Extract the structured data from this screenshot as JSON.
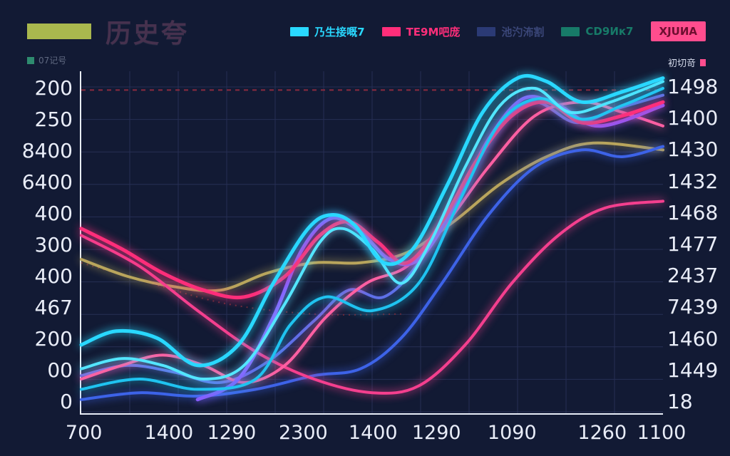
{
  "title": {
    "text": "历史夸",
    "swatch_color": "#a9b84e"
  },
  "mini_left": {
    "label": "07记号",
    "swatch_color": "#2e8b6f"
  },
  "mini_right": {
    "label": "初切竒",
    "icon_color": "#ff4d8e"
  },
  "legend": [
    {
      "label": "乃生接嘅7",
      "type": "line",
      "color": "#29d8ff",
      "text_color": "#29d8ff"
    },
    {
      "label": "TE9M吧庞",
      "type": "line",
      "color": "#ff2e7a",
      "text_color": "#ff2e7a"
    },
    {
      "label": "池汋㳍割",
      "type": "line",
      "color": "#2b3a75",
      "text_color": "#3a4678"
    },
    {
      "label": "CD9Ик7",
      "type": "line",
      "color": "#177a68",
      "text_color": "#177a68"
    },
    {
      "label": "XJUИA",
      "type": "box",
      "color": "#ff4d8e",
      "text_color": "#6e0e30"
    }
  ],
  "chart_data": {
    "type": "line",
    "title": "历史夸",
    "grid": true,
    "grid_color": "#262f55",
    "background": "#121a34",
    "legend_position": "top-right",
    "left_axis_labels": [
      "200",
      "250",
      "8400",
      "6400",
      "400",
      "300",
      "400",
      "467",
      "200",
      "00",
      "0"
    ],
    "right_axis_labels": [
      "1498",
      "1400",
      "1430",
      "1432",
      "1468",
      "1477",
      "2437",
      "7439",
      "1460",
      "1449",
      "18"
    ],
    "x_tick_labels": [
      "700",
      "1400",
      "1290",
      "2300",
      "1400",
      "1290",
      "1090",
      "1260",
      "1100"
    ],
    "x_ticks": [
      {
        "label": "700",
        "pos": 0.007
      },
      {
        "label": "1400",
        "pos": 0.153
      },
      {
        "label": "1290",
        "pos": 0.261
      },
      {
        "label": "2300",
        "pos": 0.384
      },
      {
        "label": "1400",
        "pos": 0.504
      },
      {
        "label": "1290",
        "pos": 0.613
      },
      {
        "label": "1090",
        "pos": 0.743
      },
      {
        "label": "1260",
        "pos": 0.898
      },
      {
        "label": "1100",
        "pos": 1.0
      }
    ],
    "values_note": "series points are normalized plot coordinates: x 0(left)-1(right), y 0(top)-1(bottom); axis labels on chart are non-monotonic",
    "reference_lines": [
      {
        "color": "#8a2b3f",
        "dash": "6 6",
        "points": [
          [
            0,
            0.055
          ],
          [
            1,
            0.055
          ]
        ]
      },
      {
        "color": "#6b2a3a",
        "dash": "2 6",
        "points": [
          [
            0,
            0.56
          ],
          [
            0.12,
            0.62
          ],
          [
            0.25,
            0.68
          ],
          [
            0.4,
            0.71
          ],
          [
            0.55,
            0.71
          ]
        ]
      }
    ],
    "series": [
      {
        "name": "CD9Ик7",
        "color": "#b9a55c",
        "width": 4,
        "points": [
          [
            0,
            0.55
          ],
          [
            0.08,
            0.6
          ],
          [
            0.16,
            0.63
          ],
          [
            0.24,
            0.64
          ],
          [
            0.32,
            0.59
          ],
          [
            0.4,
            0.56
          ],
          [
            0.48,
            0.56
          ],
          [
            0.56,
            0.53
          ],
          [
            0.64,
            0.44
          ],
          [
            0.72,
            0.33
          ],
          [
            0.8,
            0.25
          ],
          [
            0.88,
            0.21
          ],
          [
            1,
            0.23
          ]
        ]
      },
      {
        "name": "池汋㳍割",
        "color": "#3d63e8",
        "width": 4,
        "points": [
          [
            0,
            0.96
          ],
          [
            0.1,
            0.94
          ],
          [
            0.2,
            0.95
          ],
          [
            0.3,
            0.93
          ],
          [
            0.4,
            0.89
          ],
          [
            0.48,
            0.87
          ],
          [
            0.55,
            0.78
          ],
          [
            0.62,
            0.62
          ],
          [
            0.7,
            0.42
          ],
          [
            0.78,
            0.28
          ],
          [
            0.86,
            0.23
          ],
          [
            0.93,
            0.25
          ],
          [
            1,
            0.22
          ]
        ]
      },
      {
        "name": "slate-2",
        "color": "#5f6fe8",
        "width": 4,
        "points": [
          [
            0,
            0.89
          ],
          [
            0.08,
            0.86
          ],
          [
            0.16,
            0.88
          ],
          [
            0.24,
            0.91
          ],
          [
            0.32,
            0.85
          ],
          [
            0.4,
            0.73
          ],
          [
            0.46,
            0.64
          ],
          [
            0.52,
            0.66
          ],
          [
            0.58,
            0.56
          ],
          [
            0.65,
            0.36
          ],
          [
            0.72,
            0.16
          ],
          [
            0.78,
            0.09
          ],
          [
            0.85,
            0.15
          ],
          [
            0.92,
            0.11
          ],
          [
            1,
            0.07
          ]
        ]
      },
      {
        "name": "pink-2",
        "color": "#f43f8e",
        "width": 4,
        "points": [
          [
            0,
            0.48
          ],
          [
            0.1,
            0.57
          ],
          [
            0.2,
            0.7
          ],
          [
            0.3,
            0.82
          ],
          [
            0.4,
            0.9
          ],
          [
            0.5,
            0.94
          ],
          [
            0.58,
            0.92
          ],
          [
            0.66,
            0.8
          ],
          [
            0.74,
            0.62
          ],
          [
            0.82,
            0.48
          ],
          [
            0.9,
            0.4
          ],
          [
            1,
            0.38
          ]
        ]
      },
      {
        "name": "pink-3",
        "color": "#ff5fa2",
        "width": 4,
        "points": [
          [
            0,
            0.9
          ],
          [
            0.07,
            0.86
          ],
          [
            0.14,
            0.83
          ],
          [
            0.21,
            0.86
          ],
          [
            0.28,
            0.91
          ],
          [
            0.35,
            0.86
          ],
          [
            0.42,
            0.72
          ],
          [
            0.49,
            0.62
          ],
          [
            0.56,
            0.57
          ],
          [
            0.63,
            0.44
          ],
          [
            0.7,
            0.28
          ],
          [
            0.78,
            0.13
          ],
          [
            0.86,
            0.09
          ],
          [
            0.93,
            0.12
          ],
          [
            1,
            0.16
          ]
        ]
      },
      {
        "name": "purple-1",
        "color": "#8a5cff",
        "width": 5,
        "points": [
          [
            0.2,
            0.96
          ],
          [
            0.27,
            0.9
          ],
          [
            0.33,
            0.72
          ],
          [
            0.38,
            0.52
          ],
          [
            0.43,
            0.43
          ],
          [
            0.48,
            0.47
          ],
          [
            0.53,
            0.55
          ],
          [
            0.58,
            0.55
          ],
          [
            0.64,
            0.4
          ],
          [
            0.7,
            0.2
          ],
          [
            0.76,
            0.08
          ],
          [
            0.82,
            0.1
          ],
          [
            0.89,
            0.16
          ],
          [
            1,
            0.1
          ]
        ]
      },
      {
        "name": "TE9M吧庞",
        "color": "#ff2e7a",
        "width": 5,
        "points": [
          [
            0,
            0.46
          ],
          [
            0.07,
            0.52
          ],
          [
            0.14,
            0.59
          ],
          [
            0.21,
            0.64
          ],
          [
            0.28,
            0.66
          ],
          [
            0.35,
            0.6
          ],
          [
            0.41,
            0.48
          ],
          [
            0.46,
            0.44
          ],
          [
            0.51,
            0.5
          ],
          [
            0.56,
            0.56
          ],
          [
            0.62,
            0.44
          ],
          [
            0.68,
            0.26
          ],
          [
            0.74,
            0.13
          ],
          [
            0.8,
            0.09
          ],
          [
            0.86,
            0.15
          ],
          [
            0.93,
            0.13
          ],
          [
            1,
            0.09
          ]
        ]
      },
      {
        "name": "cyan-3",
        "color": "#1fc3f0",
        "width": 4,
        "points": [
          [
            0,
            0.93
          ],
          [
            0.1,
            0.9
          ],
          [
            0.2,
            0.93
          ],
          [
            0.3,
            0.9
          ],
          [
            0.36,
            0.74
          ],
          [
            0.42,
            0.66
          ],
          [
            0.5,
            0.7
          ],
          [
            0.58,
            0.62
          ],
          [
            0.65,
            0.38
          ],
          [
            0.72,
            0.15
          ],
          [
            0.79,
            0.08
          ],
          [
            0.86,
            0.14
          ],
          [
            0.93,
            0.1
          ],
          [
            1,
            0.05
          ]
        ]
      },
      {
        "name": "cyan-2",
        "color": "#53e6ff",
        "width": 4,
        "points": [
          [
            0,
            0.87
          ],
          [
            0.07,
            0.84
          ],
          [
            0.14,
            0.86
          ],
          [
            0.21,
            0.9
          ],
          [
            0.28,
            0.86
          ],
          [
            0.35,
            0.68
          ],
          [
            0.41,
            0.5
          ],
          [
            0.45,
            0.46
          ],
          [
            0.5,
            0.52
          ],
          [
            0.55,
            0.62
          ],
          [
            0.6,
            0.5
          ],
          [
            0.66,
            0.28
          ],
          [
            0.72,
            0.1
          ],
          [
            0.78,
            0.05
          ],
          [
            0.84,
            0.12
          ],
          [
            0.91,
            0.09
          ],
          [
            1,
            0.03
          ]
        ]
      },
      {
        "name": "乃生接嘅7",
        "color": "#29d8ff",
        "width": 5,
        "points": [
          [
            0,
            0.8
          ],
          [
            0.06,
            0.76
          ],
          [
            0.13,
            0.78
          ],
          [
            0.2,
            0.86
          ],
          [
            0.27,
            0.8
          ],
          [
            0.33,
            0.62
          ],
          [
            0.39,
            0.46
          ],
          [
            0.43,
            0.42
          ],
          [
            0.47,
            0.45
          ],
          [
            0.52,
            0.56
          ],
          [
            0.57,
            0.52
          ],
          [
            0.63,
            0.33
          ],
          [
            0.69,
            0.12
          ],
          [
            0.75,
            0.02
          ],
          [
            0.8,
            0.03
          ],
          [
            0.86,
            0.09
          ],
          [
            0.93,
            0.06
          ],
          [
            1,
            0.02
          ]
        ]
      }
    ]
  }
}
